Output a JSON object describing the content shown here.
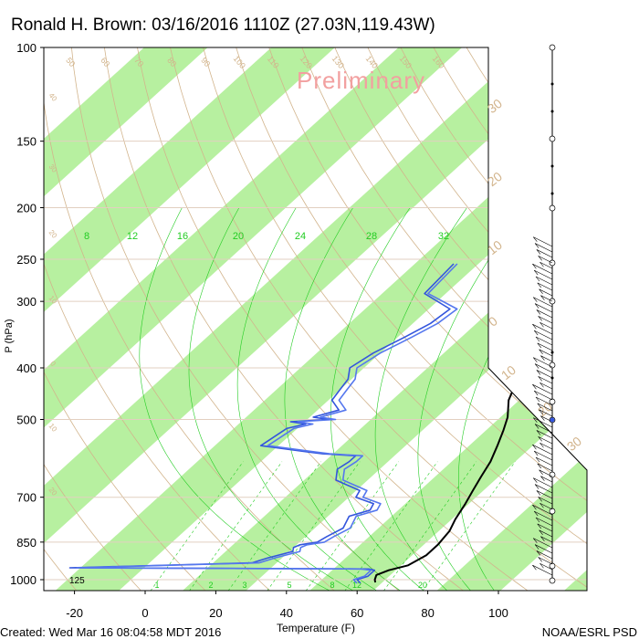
{
  "chart_data": {
    "type": "line",
    "title": "Ronald H. Brown: 03/16/2016 1110Z (27.03N,119.43W)",
    "xlabel": "Temperature (F)",
    "ylabel": "P (hPa)",
    "xlim": [
      -28,
      115
    ],
    "ylim": [
      1050,
      100
    ],
    "y_scale": "log",
    "x_ticks": [
      "-20",
      "0",
      "20",
      "40",
      "60",
      "80",
      "100"
    ],
    "x_tick_values": [
      -20,
      0,
      20,
      40,
      60,
      80,
      100
    ],
    "y_ticks": [
      "100",
      "150",
      "200",
      "250",
      "300",
      "400",
      "500",
      "700",
      "850",
      "1000"
    ],
    "y_tick_values": [
      100,
      150,
      200,
      250,
      300,
      400,
      500,
      700,
      850,
      1000
    ],
    "watermark": "Preliminary",
    "surface_label": "125",
    "footer_left": "Created: Wed Mar 16 08:04:58 MDT 2016",
    "footer_right": "NOAA/ESRL PSD",
    "mixing_ratio_labels": [
      "8",
      "12",
      "16",
      "20",
      "24",
      "28",
      "32"
    ],
    "bottom_mixing_labels": [
      "1",
      "2",
      "3",
      "5",
      "8",
      "12",
      "20"
    ],
    "isotherm_labels_right": [
      "30",
      "20",
      "10",
      "0",
      "10",
      "20",
      "30"
    ],
    "theta_labels_top": [
      "50",
      "60",
      "70",
      "80",
      "90",
      "100",
      "110",
      "120",
      "130",
      "140",
      "150",
      "160"
    ],
    "theta_labels_left": [
      "40",
      "30",
      "20",
      "10",
      "0",
      "10",
      "20"
    ],
    "colors": {
      "band": "#b7f0a0",
      "temperature": "#000000",
      "dewpoint": "#3355dd",
      "dry_adiabat": "#d2b48c",
      "moist_adiabat": "#22cc22",
      "watermark": "#f2a0a0",
      "frame": "#000000"
    },
    "series": [
      {
        "name": "",
        "color": "#000000",
        "points": [
          [
            24,
            255
          ],
          [
            27,
            280
          ],
          [
            29,
            300
          ],
          [
            34,
            340
          ],
          [
            39,
            380
          ],
          [
            43,
            420
          ],
          [
            47,
            460
          ],
          [
            52,
            495
          ],
          [
            55,
            525
          ],
          [
            58,
            560
          ],
          [
            61,
            600
          ],
          [
            63,
            640
          ],
          [
            65,
            680
          ],
          [
            67,
            720
          ],
          [
            69,
            770
          ],
          [
            71,
            810
          ],
          [
            72,
            860
          ],
          [
            72,
            900
          ],
          [
            70,
            940
          ],
          [
            66,
            960
          ],
          [
            64,
            980
          ],
          [
            65,
            1000
          ],
          [
            66,
            1012
          ]
        ]
      },
      {
        "name": "",
        "color": "#3355dd",
        "points": [
          [
            -11,
            255
          ],
          [
            -10,
            290
          ],
          [
            2,
            310
          ],
          [
            1,
            330
          ],
          [
            -2,
            350
          ],
          [
            -6,
            375
          ],
          [
            -8,
            400
          ],
          [
            -5,
            420
          ],
          [
            -4,
            440
          ],
          [
            -3,
            460
          ],
          [
            2,
            480
          ],
          [
            -3,
            495
          ],
          [
            2,
            500
          ],
          [
            -8,
            505
          ],
          [
            -3,
            510
          ],
          [
            -7,
            520
          ],
          [
            -9,
            560
          ],
          [
            6,
            575
          ],
          [
            11,
            580
          ],
          [
            21,
            585
          ],
          [
            21,
            600
          ],
          [
            20,
            620
          ],
          [
            23,
            650
          ],
          [
            33,
            680
          ],
          [
            34,
            700
          ],
          [
            41,
            720
          ],
          [
            42,
            740
          ],
          [
            38,
            760
          ],
          [
            40,
            800
          ],
          [
            38,
            830
          ],
          [
            37,
            850
          ],
          [
            33,
            860
          ],
          [
            32,
            870
          ],
          [
            33,
            885
          ],
          [
            28,
            910
          ],
          [
            25,
            930
          ],
          [
            -25,
            950
          ],
          [
            60,
            955
          ],
          [
            62,
            960
          ],
          [
            62,
            985
          ],
          [
            60,
            1000
          ],
          [
            62,
            1015
          ]
        ]
      },
      {
        "name": "",
        "color": "#5577ee",
        "points": [
          [
            -10,
            255
          ],
          [
            -9,
            290
          ],
          [
            4,
            310
          ],
          [
            3,
            330
          ],
          [
            0,
            350
          ],
          [
            -4,
            375
          ],
          [
            -6,
            400
          ],
          [
            -3,
            420
          ],
          [
            -2,
            440
          ],
          [
            -1,
            460
          ],
          [
            4,
            480
          ],
          [
            -1,
            495
          ],
          [
            4,
            500
          ],
          [
            -6,
            505
          ],
          [
            -1,
            510
          ],
          [
            -5,
            520
          ],
          [
            -7,
            560
          ],
          [
            8,
            575
          ],
          [
            13,
            580
          ],
          [
            23,
            585
          ],
          [
            23,
            600
          ],
          [
            22,
            620
          ],
          [
            25,
            650
          ],
          [
            35,
            680
          ],
          [
            36,
            700
          ],
          [
            43,
            720
          ],
          [
            44,
            740
          ],
          [
            40,
            760
          ],
          [
            42,
            800
          ],
          [
            40,
            830
          ],
          [
            39,
            850
          ],
          [
            35,
            860
          ],
          [
            34,
            870
          ],
          [
            35,
            885
          ],
          [
            30,
            910
          ],
          [
            27,
            930
          ],
          [
            -23,
            950
          ],
          [
            58,
            955
          ],
          [
            61,
            960
          ],
          [
            61,
            985
          ],
          [
            59,
            1000
          ],
          [
            61,
            1015
          ]
        ]
      }
    ]
  }
}
